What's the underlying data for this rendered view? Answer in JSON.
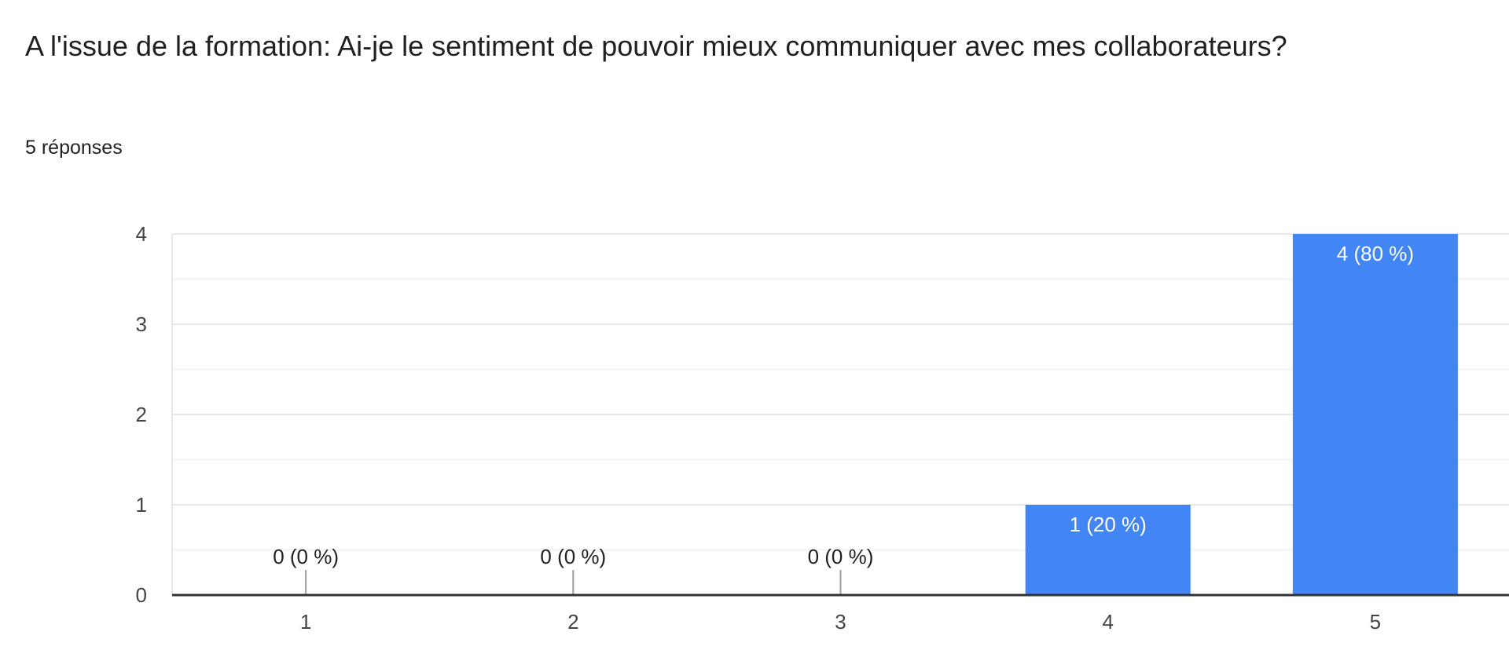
{
  "form": {
    "question": "A l'issue de la formation: Ai-je le sentiment de pouvoir mieux communiquer avec mes collaborateurs?",
    "responses_label": "5 réponses"
  },
  "colors": {
    "bar": "#4285f4",
    "grid": "#e8e8e8",
    "axis": "#333333",
    "text": "#202124",
    "tick_text": "#444444",
    "label_inside": "#ffffff"
  },
  "chart_data": {
    "type": "bar",
    "categories": [
      "1",
      "2",
      "3",
      "4",
      "5"
    ],
    "values": [
      0,
      0,
      0,
      1,
      4
    ],
    "data_labels": [
      "0 (0 %)",
      "0 (0 %)",
      "0 (0 %)",
      "1 (20 %)",
      "4 (80 %)"
    ],
    "title": "",
    "xlabel": "",
    "ylabel": "",
    "ylim": [
      0,
      4
    ],
    "yticks": [
      0,
      1,
      2,
      3,
      4
    ],
    "minor_grid": true,
    "grid": true,
    "legend": "none"
  }
}
